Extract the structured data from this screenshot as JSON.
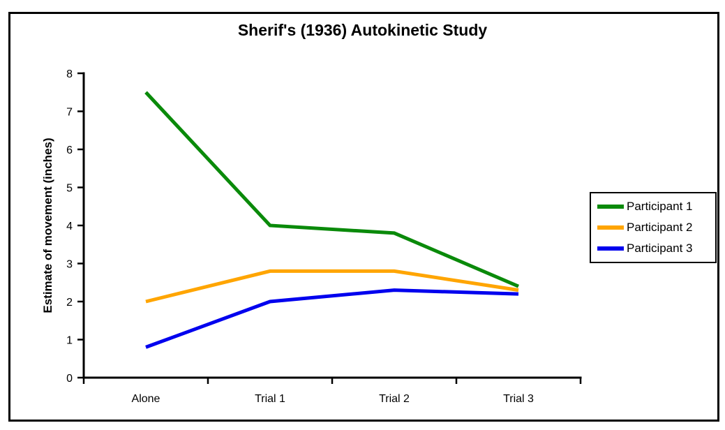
{
  "figure": {
    "background": "#ffffff",
    "border_color": "#000000"
  },
  "chart_data": {
    "type": "line",
    "title": "Sherif's (1936) Autokinetic Study",
    "ylabel": "Estimate of movement (inches)",
    "xlabel": "",
    "categories": [
      "Alone",
      "Trial 1",
      "Trial 2",
      "Trial 3"
    ],
    "series": [
      {
        "name": "Participant 1",
        "color": "#0a8a0a",
        "values": [
          7.5,
          4.0,
          3.8,
          2.4
        ]
      },
      {
        "name": "Participant 2",
        "color": "#ffa500",
        "values": [
          2.0,
          2.8,
          2.8,
          2.3
        ]
      },
      {
        "name": "Participant 3",
        "color": "#0000ee",
        "values": [
          0.8,
          2.0,
          2.3,
          2.2
        ]
      }
    ],
    "ylim": [
      0,
      8
    ],
    "yticks": [
      0,
      1,
      2,
      3,
      4,
      5,
      6,
      7,
      8
    ],
    "grid": false,
    "legend_position": "right",
    "axis_color": "#000000"
  }
}
